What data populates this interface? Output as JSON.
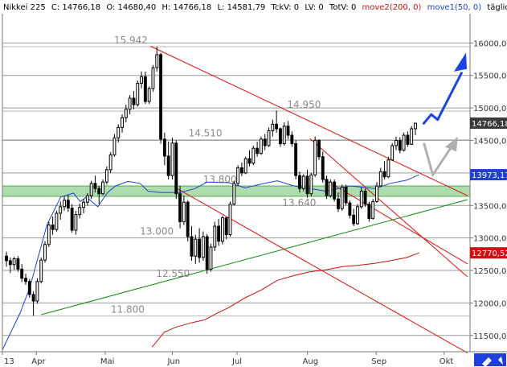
{
  "header": {
    "title": "Nikkei 225",
    "close": "C: 14766,18",
    "open": "O: 14680,40",
    "high": "H: 14766,18",
    "low": "L: 14581,79",
    "tickvol": "TckV: 0",
    "lastvol": "LV: 0",
    "totvol": "TotV: 0",
    "ma2_label": "move2(200, 0)",
    "ma1_label": "move1(50, 0)",
    "period": "täglich"
  },
  "colors": {
    "background": "#ffffff",
    "candle_up": "#ffffff",
    "candle_down": "#000000",
    "ma50": "#1f3fd8",
    "ma200": "#cc1111",
    "support_line": "#0a8a0a",
    "trend_lines": "#dd1111",
    "zone_fill": "#9fd89f",
    "arrow_bull": "#1a44e6",
    "arrow_alt": "#b0b0b0",
    "label_box_dark": "#3a3a3a",
    "label_box_blue": "#1f3fd8",
    "label_box_red": "#cc1111"
  },
  "chart_data": {
    "type": "candlestick",
    "title": "Nikkei 225",
    "ylim": [
      11250,
      16450
    ],
    "y_ticks": [
      11500,
      12000,
      12500,
      13000,
      13500,
      14000,
      14500,
      15000,
      15500,
      16000
    ],
    "y_tick_labels": [
      "11500,00",
      "12000,00",
      "12500,00",
      "13000,00",
      "13500,00",
      "14000,00",
      "14500,00",
      "15000,00",
      "15500,00",
      "16000,00"
    ],
    "x_tick_labels": [
      "13",
      "Apr",
      "Mai",
      "Jun",
      "Jul",
      "Aug",
      "Sep",
      "Okt"
    ],
    "horizontal_levels": [
      15942,
      14950,
      14510,
      13800,
      13640,
      13000,
      12550,
      11800
    ],
    "level_labels": [
      "15.942",
      "14.950",
      "14.510",
      "13.800",
      "13.640",
      "13.000",
      "12.550",
      "11.800"
    ],
    "zone": [
      13640,
      13800
    ],
    "last_price": "14766,18",
    "ma50_last": "13973,17",
    "ma200_last": "12770,52",
    "ohlc": [
      [
        12720,
        12790,
        12560,
        12650
      ],
      [
        12650,
        12700,
        12460,
        12590
      ],
      [
        12590,
        12710,
        12510,
        12680
      ],
      [
        12680,
        12720,
        12480,
        12520
      ],
      [
        12520,
        12600,
        12320,
        12380
      ],
      [
        12380,
        12450,
        12280,
        12330
      ],
      [
        12330,
        12370,
        12080,
        12130
      ],
      [
        12130,
        12180,
        11800,
        12030
      ],
      [
        12030,
        12380,
        11990,
        12330
      ],
      [
        12330,
        12700,
        12300,
        12660
      ],
      [
        12660,
        12950,
        12620,
        12900
      ],
      [
        12900,
        13250,
        12860,
        13200
      ],
      [
        13200,
        13330,
        13050,
        13130
      ],
      [
        13130,
        13420,
        13100,
        13380
      ],
      [
        13380,
        13560,
        13280,
        13480
      ],
      [
        13480,
        13640,
        13420,
        13580
      ],
      [
        13580,
        13660,
        13400,
        13460
      ],
      [
        13460,
        13520,
        13080,
        13120
      ],
      [
        13120,
        13420,
        13050,
        13360
      ],
      [
        13360,
        13530,
        13300,
        13470
      ],
      [
        13470,
        13600,
        13380,
        13550
      ],
      [
        13550,
        13690,
        13500,
        13650
      ],
      [
        13650,
        13880,
        13600,
        13840
      ],
      [
        13840,
        13960,
        13700,
        13760
      ],
      [
        13760,
        13800,
        13520,
        13680
      ],
      [
        13680,
        13900,
        13660,
        13860
      ],
      [
        13860,
        14100,
        13820,
        14050
      ],
      [
        14050,
        14320,
        14000,
        14280
      ],
      [
        14280,
        14600,
        14250,
        14540
      ],
      [
        14540,
        14750,
        14470,
        14700
      ],
      [
        14700,
        14900,
        14620,
        14850
      ],
      [
        14850,
        15050,
        14780,
        14980
      ],
      [
        14980,
        15200,
        14900,
        15150
      ],
      [
        15150,
        15260,
        14980,
        15050
      ],
      [
        15050,
        15420,
        15020,
        15380
      ],
      [
        15380,
        15560,
        15300,
        15480
      ],
      [
        15480,
        15560,
        15060,
        15100
      ],
      [
        15100,
        15330,
        15060,
        15300
      ],
      [
        15300,
        15660,
        15250,
        15620
      ],
      [
        15620,
        15942,
        15560,
        15820
      ],
      [
        15820,
        15850,
        14450,
        14520
      ],
      [
        14520,
        14620,
        14120,
        14260
      ],
      [
        14260,
        14480,
        13900,
        13960
      ],
      [
        13960,
        14540,
        13900,
        14460
      ],
      [
        14460,
        14500,
        13600,
        13680
      ],
      [
        13680,
        13800,
        13150,
        13250
      ],
      [
        13250,
        13650,
        13200,
        13550
      ],
      [
        13550,
        13580,
        12950,
        13020
      ],
      [
        13020,
        13180,
        12650,
        12720
      ],
      [
        12720,
        13050,
        12600,
        12980
      ],
      [
        12980,
        13150,
        12620,
        12700
      ],
      [
        12700,
        13100,
        12650,
        13020
      ],
      [
        13020,
        13060,
        12450,
        12520
      ],
      [
        12520,
        12910,
        12480,
        12860
      ],
      [
        12860,
        13250,
        12800,
        13180
      ],
      [
        13180,
        13290,
        12880,
        12950
      ],
      [
        12950,
        13340,
        12900,
        13310
      ],
      [
        13310,
        13320,
        12980,
        13050
      ],
      [
        13050,
        13560,
        13020,
        13520
      ],
      [
        13520,
        13880,
        13500,
        13840
      ],
      [
        13840,
        14120,
        13800,
        14080
      ],
      [
        14080,
        14160,
        13950,
        14000
      ],
      [
        14000,
        14250,
        13980,
        14220
      ],
      [
        14220,
        14350,
        14100,
        14150
      ],
      [
        14150,
        14420,
        14120,
        14380
      ],
      [
        14380,
        14480,
        14250,
        14300
      ],
      [
        14300,
        14560,
        14280,
        14520
      ],
      [
        14520,
        14600,
        14350,
        14420
      ],
      [
        14420,
        14700,
        14400,
        14650
      ],
      [
        14650,
        14820,
        14560,
        14750
      ],
      [
        14750,
        14960,
        14620,
        14680
      ],
      [
        14680,
        14700,
        14400,
        14450
      ],
      [
        14450,
        14780,
        14420,
        14720
      ],
      [
        14720,
        14800,
        14520,
        14580
      ],
      [
        14580,
        14640,
        14400,
        14450
      ],
      [
        14450,
        14500,
        13900,
        13960
      ],
      [
        13960,
        14020,
        13700,
        13760
      ],
      [
        13760,
        13980,
        13720,
        13950
      ],
      [
        13950,
        14050,
        13620,
        13680
      ],
      [
        13680,
        14000,
        13640,
        13970
      ],
      [
        13970,
        14560,
        13940,
        14500
      ],
      [
        14500,
        14520,
        14200,
        14250
      ],
      [
        14250,
        14330,
        13850,
        13900
      ],
      [
        13900,
        13960,
        13600,
        13650
      ],
      [
        13650,
        13900,
        13620,
        13860
      ],
      [
        13860,
        13900,
        13560,
        13600
      ],
      [
        13600,
        13700,
        13400,
        13450
      ],
      [
        13450,
        13820,
        13420,
        13780
      ],
      [
        13780,
        13820,
        13500,
        13540
      ],
      [
        13540,
        13580,
        13300,
        13350
      ],
      [
        13350,
        13450,
        13180,
        13220
      ],
      [
        13220,
        13520,
        13200,
        13480
      ],
      [
        13480,
        13780,
        13450,
        13720
      ],
      [
        13720,
        13760,
        13480,
        13520
      ],
      [
        13520,
        13560,
        13250,
        13300
      ],
      [
        13300,
        13600,
        13280,
        13560
      ],
      [
        13560,
        13860,
        13540,
        13800
      ],
      [
        13800,
        14080,
        13780,
        14020
      ],
      [
        14020,
        14180,
        13900,
        13940
      ],
      [
        13940,
        14250,
        13920,
        14200
      ],
      [
        14200,
        14460,
        14180,
        14420
      ],
      [
        14420,
        14560,
        14350,
        14500
      ],
      [
        14500,
        14550,
        14300,
        14350
      ],
      [
        14350,
        14620,
        14330,
        14580
      ],
      [
        14580,
        14640,
        14400,
        14440
      ],
      [
        14440,
        14720,
        14430,
        14680
      ],
      [
        14680,
        14766,
        14581,
        14766
      ]
    ],
    "ma50": [
      [
        0,
        11280
      ],
      [
        22,
        11850
      ],
      [
        34,
        12240
      ],
      [
        55,
        13200
      ],
      [
        72,
        13630
      ],
      [
        88,
        13690
      ],
      [
        96,
        13560
      ],
      [
        104,
        13630
      ],
      [
        118,
        13480
      ],
      [
        130,
        13700
      ],
      [
        140,
        13800
      ],
      [
        155,
        13870
      ],
      [
        170,
        13840
      ],
      [
        180,
        13720
      ],
      [
        195,
        13700
      ],
      [
        220,
        13700
      ],
      [
        238,
        13760
      ],
      [
        253,
        13860
      ],
      [
        280,
        13850
      ],
      [
        300,
        13770
      ],
      [
        320,
        13830
      ],
      [
        340,
        13880
      ],
      [
        360,
        13800
      ],
      [
        400,
        13720
      ],
      [
        430,
        13800
      ],
      [
        460,
        13760
      ],
      [
        480,
        13840
      ],
      [
        500,
        13890
      ],
      [
        515,
        13973
      ]
    ],
    "ma200": [
      [
        185,
        11320
      ],
      [
        200,
        11550
      ],
      [
        215,
        11630
      ],
      [
        235,
        11700
      ],
      [
        250,
        11740
      ],
      [
        265,
        11840
      ],
      [
        280,
        11930
      ],
      [
        300,
        12080
      ],
      [
        320,
        12200
      ],
      [
        340,
        12350
      ],
      [
        360,
        12420
      ],
      [
        380,
        12480
      ],
      [
        400,
        12510
      ],
      [
        420,
        12560
      ],
      [
        440,
        12580
      ],
      [
        460,
        12610
      ],
      [
        480,
        12650
      ],
      [
        500,
        12700
      ],
      [
        515,
        12770
      ]
    ],
    "trend_lines": [
      {
        "name": "support",
        "color": "green",
        "from": [
          48,
          11820
        ],
        "to": [
          575,
          13590
        ]
      },
      {
        "name": "resistance-outer",
        "color": "red",
        "from": [
          183,
          15950
        ],
        "to": [
          575,
          13650
        ]
      },
      {
        "name": "resistance-inner",
        "color": "red",
        "from": [
          380,
          14530
        ],
        "to": [
          575,
          12400
        ]
      },
      {
        "name": "support-inner",
        "color": "red",
        "from": [
          395,
          13920
        ],
        "to": [
          575,
          12600
        ]
      },
      {
        "name": "breakdown",
        "color": "red",
        "from": [
          213,
          13780
        ],
        "to": [
          575,
          11230
        ]
      }
    ]
  }
}
